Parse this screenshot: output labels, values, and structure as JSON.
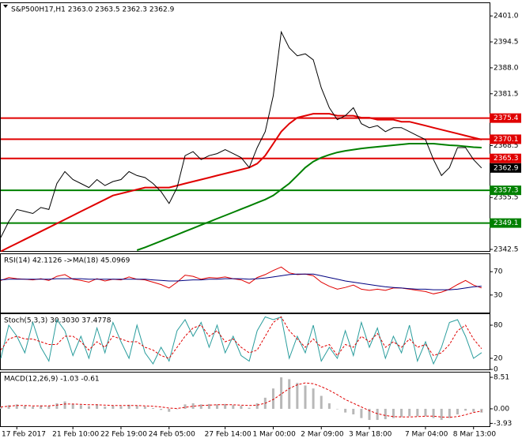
{
  "chart_data": [
    {
      "type": "line",
      "title": "S&P500H17,H1  2363.0 2363.5 2362.3 2362.9",
      "xlim": [
        0,
        61
      ],
      "xticks": [
        {
          "value": 2,
          "label": "17 Feb 2017"
        },
        {
          "value": 9,
          "label": "21 Feb 10:00"
        },
        {
          "value": 15,
          "label": "22 Feb 19:00"
        },
        {
          "value": 21,
          "label": "24 Feb 05:00"
        },
        {
          "value": 28,
          "label": "27 Feb 14:00"
        },
        {
          "value": 34,
          "label": "1 Mar 00:00"
        },
        {
          "value": 40,
          "label": "2 Mar 09:00"
        },
        {
          "value": 46,
          "label": "3 Mar 18:00"
        },
        {
          "value": 53,
          "label": "7 Mar 04:00"
        },
        {
          "value": 59,
          "label": "8 Mar 13:00"
        }
      ],
      "ylim": [
        2342.1,
        2404.2
      ],
      "yticks": [
        {
          "value": 2401,
          "label": "2401.0"
        },
        2394.5,
        {
          "value": 2388,
          "label": "2388.0"
        },
        2381.5,
        2368.5,
        2355.5,
        2342.5
      ],
      "levels": [
        {
          "value": 2375.4,
          "color": "#e00000"
        },
        {
          "value": 2370.1,
          "color": "#e00000"
        },
        {
          "value": 2365.3,
          "color": "#e00000"
        },
        {
          "value": 2357.3,
          "color": "#008000"
        },
        {
          "value": 2349.1,
          "color": "#008000"
        }
      ],
      "last": 2362.9,
      "series": [
        {
          "color": "#e00000",
          "width": 2,
          "values": [
            2342,
            2343,
            2344,
            2345,
            2346,
            2347,
            2348,
            2349,
            2350,
            2351,
            2352,
            2353,
            2354,
            2355,
            2356,
            2356.5,
            2357,
            2357.5,
            2358,
            2358,
            2358,
            2358,
            2358.5,
            2359,
            2359.5,
            2360,
            2360.5,
            2361,
            2361.5,
            2362,
            2362.5,
            2363,
            2364,
            2366,
            2369,
            2372,
            2374,
            2375.5,
            2376,
            2376.5,
            2376.5,
            2376.5,
            2376,
            2376,
            2376,
            2375.5,
            2375.5,
            2375,
            2375,
            2375,
            2374.5,
            2374.5,
            2374,
            2373.5,
            2373,
            2372.5,
            2372,
            2371.5,
            2371,
            2370.5,
            2370
          ]
        },
        {
          "color": "#008000",
          "width": 2,
          "values": [
            null,
            null,
            null,
            null,
            null,
            null,
            null,
            null,
            null,
            null,
            null,
            null,
            null,
            null,
            null,
            null,
            null,
            2342.3,
            2343,
            2343.8,
            2344.6,
            2345.4,
            2346.2,
            2347,
            2347.8,
            2348.6,
            2349.4,
            2350.2,
            2351,
            2351.8,
            2352.6,
            2353.4,
            2354.2,
            2355,
            2356,
            2357.5,
            2359,
            2361,
            2363,
            2364.5,
            2365.5,
            2366.2,
            2366.8,
            2367.2,
            2367.5,
            2367.8,
            2368,
            2368.2,
            2368.4,
            2368.6,
            2368.8,
            2369,
            2369,
            2369,
            2369,
            2368.8,
            2368.6,
            2368.5,
            2368.3,
            2368.1,
            2368
          ]
        },
        {
          "color": "#000000",
          "width": 1,
          "values": [
            2345.5,
            2349.5,
            2352.5,
            2352,
            2351.5,
            2353,
            2352.5,
            2359,
            2362,
            2360,
            2359,
            2358,
            2360,
            2358.5,
            2359.5,
            2360,
            2362,
            2361,
            2360.5,
            2359,
            2357,
            2354,
            2358,
            2366,
            2367,
            2365,
            2366,
            2366.5,
            2367.5,
            2366.5,
            2365.5,
            2363,
            2368,
            2372,
            2381,
            2397,
            2393,
            2391,
            2391.5,
            2390,
            2383,
            2378,
            2375,
            2376,
            2378,
            2374,
            2373,
            2373.5,
            2372,
            2373,
            2373,
            2372,
            2371,
            2370,
            2365,
            2361,
            2363,
            2368,
            2368,
            2365,
            2362.9
          ]
        }
      ]
    },
    {
      "type": "line",
      "title": "RSI(14) 42.1126  ->MA(18) 45.0969",
      "ylim": [
        0,
        100
      ],
      "yticks": [
        70,
        30
      ],
      "series": [
        {
          "color": "#e00000",
          "width": 1,
          "values": [
            55,
            60,
            58,
            57,
            56,
            58,
            55,
            62,
            65,
            57,
            55,
            52,
            58,
            54,
            57,
            56,
            61,
            57,
            56,
            52,
            48,
            42,
            52,
            64,
            62,
            57,
            60,
            59,
            61,
            58,
            56,
            50,
            60,
            65,
            72,
            78,
            68,
            65,
            66,
            63,
            52,
            45,
            40,
            43,
            47,
            40,
            38,
            40,
            38,
            42,
            42,
            40,
            38,
            36,
            32,
            35,
            40,
            48,
            55,
            47,
            42.1126
          ]
        },
        {
          "color": "#000080",
          "width": 1,
          "values": [
            56,
            57,
            57,
            57,
            57,
            57,
            57,
            58,
            58,
            58,
            58,
            57,
            57,
            57,
            57,
            57,
            57,
            57,
            57,
            56,
            55,
            54,
            54,
            55,
            56,
            56,
            57,
            57,
            58,
            58,
            58,
            57,
            58,
            59,
            61,
            63,
            65,
            66,
            66,
            66,
            63,
            60,
            57,
            54,
            52,
            50,
            48,
            46,
            44,
            43,
            42,
            41,
            40,
            40,
            39,
            39,
            39,
            40,
            42,
            44,
            45.0969
          ]
        }
      ]
    },
    {
      "type": "line",
      "title": "Stoch(5,3,3) 30.3030 37.4778",
      "ylim": [
        0,
        100
      ],
      "yticks": [
        80,
        20,
        0
      ],
      "series": [
        {
          "color": "#2a9d9d",
          "width": 1,
          "values": [
            20,
            80,
            60,
            30,
            85,
            40,
            15,
            90,
            70,
            25,
            60,
            20,
            75,
            30,
            85,
            50,
            20,
            80,
            30,
            10,
            40,
            15,
            70,
            90,
            60,
            85,
            40,
            80,
            30,
            60,
            25,
            15,
            70,
            95,
            90,
            95,
            20,
            60,
            30,
            80,
            15,
            40,
            20,
            70,
            25,
            85,
            40,
            75,
            20,
            60,
            30,
            80,
            15,
            50,
            10,
            40,
            85,
            90,
            60,
            20,
            30.303
          ]
        },
        {
          "color": "#e00000",
          "width": 1,
          "dashed": true,
          "values": [
            35,
            55,
            60,
            55,
            55,
            50,
            45,
            45,
            60,
            60,
            50,
            35,
            50,
            40,
            60,
            55,
            50,
            50,
            40,
            35,
            25,
            20,
            40,
            60,
            75,
            80,
            60,
            70,
            50,
            55,
            40,
            30,
            35,
            60,
            85,
            95,
            70,
            55,
            40,
            55,
            40,
            45,
            25,
            45,
            40,
            60,
            50,
            65,
            40,
            50,
            40,
            55,
            40,
            45,
            25,
            30,
            45,
            70,
            80,
            55,
            37.4778
          ]
        }
      ]
    },
    {
      "type": "bar",
      "title": "MACD(12,26,9) -1.03 -0.61",
      "ylim": [
        -4.7,
        9.8
      ],
      "yticks": [
        8.51,
        {
          "value": 0,
          "label": "0.00"
        },
        -3.93
      ],
      "series": [
        {
          "type": "bar",
          "color": "#b8b8b8",
          "values": [
            0.5,
            1,
            1.2,
            0.8,
            0.6,
            0.9,
            0.7,
            1.5,
            2,
            1.3,
            1,
            0.7,
            1.2,
            0.6,
            0.8,
            0.7,
            1.1,
            0.8,
            0.6,
            0.2,
            -0.3,
            -0.8,
            0,
            1.2,
            1.5,
            1.2,
            1.3,
            1.2,
            1.3,
            1,
            0.8,
            0.3,
            1.5,
            3,
            5.5,
            8.5,
            8,
            7,
            6.3,
            5.5,
            3.5,
            1.5,
            0,
            -1,
            -1.5,
            -2.5,
            -3,
            -3,
            -2.8,
            -2.5,
            -2.2,
            -2,
            -2,
            -2,
            -2.5,
            -3,
            -2.5,
            -1.5,
            -0.5,
            -0.8,
            -1.03
          ]
        },
        {
          "type": "line",
          "color": "#e00000",
          "width": 1,
          "dashed": true,
          "values": [
            0.5,
            0.7,
            0.9,
            0.9,
            0.8,
            0.8,
            0.8,
            1,
            1.3,
            1.3,
            1.2,
            1.1,
            1.1,
            1,
            0.9,
            0.9,
            0.9,
            0.9,
            0.8,
            0.7,
            0.5,
            0.2,
            0.1,
            0.4,
            0.7,
            0.9,
            1,
            1.1,
            1.1,
            1.1,
            1,
            0.9,
            1,
            1.5,
            2.5,
            4,
            5.5,
            6.5,
            7,
            6.8,
            6,
            5,
            3.8,
            2.5,
            1.5,
            0.5,
            -0.5,
            -1.3,
            -1.8,
            -2.1,
            -2.2,
            -2.2,
            -2.1,
            -2,
            -2,
            -2.2,
            -2.3,
            -2.1,
            -1.6,
            -1,
            -0.61
          ]
        }
      ]
    }
  ]
}
